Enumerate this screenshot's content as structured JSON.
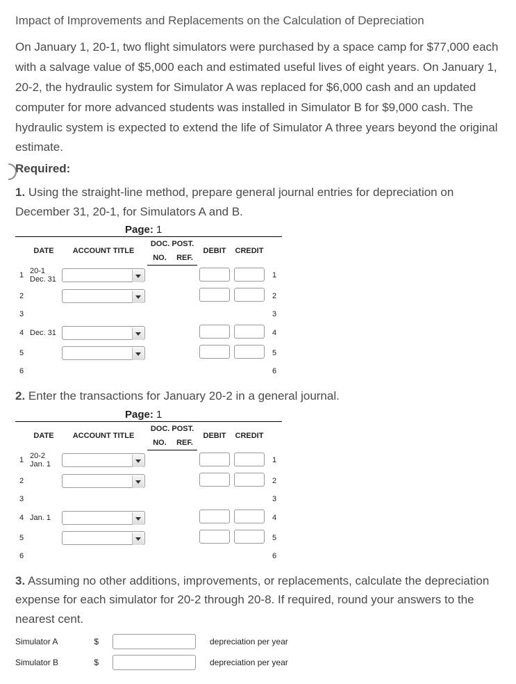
{
  "title": "Impact of Improvements and Replacements on the Calculation of Depreciation",
  "intro": "On January 1, 20-1, two flight simulators were purchased by a space camp for $77,000 each with a salvage value of $5,000 each and estimated useful lives of eight years. On January 1, 20-2, the hydraulic system for Simulator A was replaced for $6,000 cash and an updated computer for more advanced students was installed in Simulator B for $9,000 cash. The hydraulic system is expected to extend the life of Simulator A three years beyond the original estimate.",
  "required_label": "Required:",
  "task1": {
    "num": "1.",
    "text": " Using the straight-line method, prepare general journal entries for depreciation on December 31, 20-1, for Simulators A and B."
  },
  "task2": {
    "num": "2.",
    "text": "  Enter the transactions for January 20-2 in a general journal."
  },
  "task3": {
    "num": "3.",
    "text": "  Assuming no other additions, improvements, or replacements, calculate the depreciation expense for each simulator for 20-2 through 20-8. If required, round your answers to the nearest cent."
  },
  "page_label": "Page:",
  "page_num": "1",
  "headers": {
    "date": "DATE",
    "acct": "ACCOUNT TITLE",
    "docpost": "DOC. POST.",
    "no": "NO.",
    "ref": "REF.",
    "debit": "DEBIT",
    "credit": "CREDIT"
  },
  "journal1": {
    "rows": [
      {
        "n": "1",
        "date1": "20-1",
        "date2": "Dec. 31",
        "has_select": true,
        "has_inputs": true
      },
      {
        "n": "2",
        "date1": "",
        "date2": "",
        "has_select": true,
        "has_inputs": true
      },
      {
        "n": "3",
        "date1": "",
        "date2": "",
        "has_select": false,
        "has_inputs": false
      },
      {
        "n": "4",
        "date1": "",
        "date2": "Dec. 31",
        "has_select": true,
        "has_inputs": true
      },
      {
        "n": "5",
        "date1": "",
        "date2": "",
        "has_select": true,
        "has_inputs": true
      },
      {
        "n": "6",
        "date1": "",
        "date2": "",
        "has_select": false,
        "has_inputs": false
      }
    ]
  },
  "journal2": {
    "rows": [
      {
        "n": "1",
        "date1": "20-2",
        "date2": "Jan. 1",
        "has_select": true,
        "has_inputs": true
      },
      {
        "n": "2",
        "date1": "",
        "date2": "",
        "has_select": true,
        "has_inputs": true
      },
      {
        "n": "3",
        "date1": "",
        "date2": "",
        "has_select": false,
        "has_inputs": false
      },
      {
        "n": "4",
        "date1": "",
        "date2": "Jan. 1",
        "has_select": true,
        "has_inputs": true
      },
      {
        "n": "5",
        "date1": "",
        "date2": "",
        "has_select": true,
        "has_inputs": true
      },
      {
        "n": "6",
        "date1": "",
        "date2": "",
        "has_select": false,
        "has_inputs": false
      }
    ]
  },
  "sims": {
    "a": {
      "label": "Simulator A",
      "trail": "depreciation per year"
    },
    "b": {
      "label": "Simulator B",
      "trail": "depreciation per year"
    },
    "dollar": "$"
  }
}
